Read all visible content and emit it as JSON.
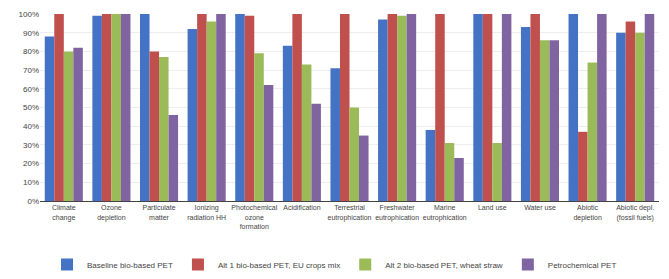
{
  "chart_data": {
    "type": "bar",
    "categories": [
      "Climate\nchange",
      "Ozone\ndepletion",
      "Particulate\nmatter",
      "Ionizing\nradiation HH",
      "Photochemical\nozone\nformation",
      "Acidification",
      "Terrestrial\neutrophication",
      "Freshwater\neutrophication",
      "Marine\neutrophication",
      "Land use",
      "Water use",
      "Abiotic\ndepletion",
      "Abiotic depl.\n(fossil fuels)"
    ],
    "series": [
      {
        "name": "Baseline bio-based PET",
        "color": "#4472C4",
        "values": [
          88,
          99,
          100,
          92,
          100,
          83,
          71,
          97,
          38,
          100,
          93,
          100,
          90
        ]
      },
      {
        "name": "Alt 1 bio-based PET, EU crops mix",
        "color": "#C0504D",
        "values": [
          100,
          100,
          80,
          100,
          99,
          100,
          100,
          100,
          100,
          100,
          100,
          37,
          96
        ]
      },
      {
        "name": "Alt 2 bio-based PET, wheat straw",
        "color": "#9BBB59",
        "values": [
          80,
          100,
          77,
          96,
          79,
          73,
          50,
          99,
          31,
          31,
          86,
          74,
          90
        ]
      },
      {
        "name": "Petrochemical PET",
        "color": "#8064A2",
        "values": [
          82,
          100,
          46,
          100,
          62,
          52,
          35,
          100,
          23,
          100,
          86,
          100,
          100
        ]
      }
    ],
    "ylim": [
      0,
      100
    ],
    "yticks": [
      {
        "value": 0,
        "label": "0%"
      },
      {
        "value": 10,
        "label": "10%"
      },
      {
        "value": 20,
        "label": "20%"
      },
      {
        "value": 30,
        "label": "30%"
      },
      {
        "value": 40,
        "label": "40%"
      },
      {
        "value": 50,
        "label": "50%"
      },
      {
        "value": 60,
        "label": "60%"
      },
      {
        "value": 70,
        "label": "70%"
      },
      {
        "value": 80,
        "label": "80%"
      },
      {
        "value": 90,
        "label": "90%"
      },
      {
        "value": 100,
        "label": "100%"
      }
    ],
    "grid": true,
    "legend": "bottom"
  }
}
